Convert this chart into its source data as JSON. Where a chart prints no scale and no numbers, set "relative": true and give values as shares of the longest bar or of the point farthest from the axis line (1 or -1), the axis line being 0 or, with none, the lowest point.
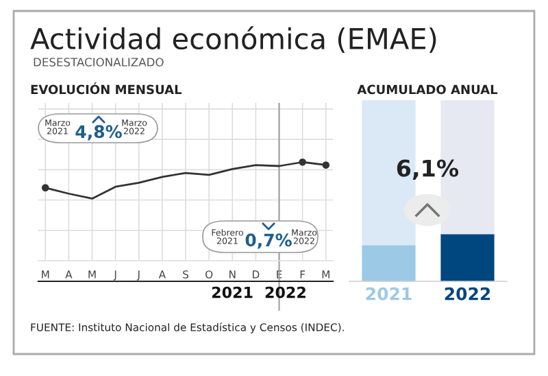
{
  "chart_data": [
    {
      "type": "line",
      "title": "EVOLUCIÓN MENSUAL",
      "relative": true,
      "grid": true,
      "legend": false,
      "marker": "none",
      "line_style": "solid",
      "categories": [
        "M",
        "A",
        "M",
        "J",
        "J",
        "A",
        "S",
        "O",
        "N",
        "D",
        "E",
        "F",
        "M"
      ],
      "series": [
        {
          "color": "#333333",
          "values": [
            0.74,
            0.68,
            0.63,
            0.75,
            0.79,
            0.85,
            0.89,
            0.87,
            0.93,
            0.97,
            0.96,
            1,
            0.97
          ]
        },
        {
          "type": "scatter",
          "marker": "circle",
          "color": "#333333",
          "values": [
            0.74,
            null,
            null,
            null,
            null,
            null,
            null,
            null,
            null,
            null,
            null,
            1,
            0.97
          ]
        }
      ],
      "ref_lines": [
        {
          "axis": "x",
          "value": "E",
          "color": "#999999"
        }
      ],
      "annotations": [
        "Marzo\n2021",
        "4,8%",
        "Marzo\n2022",
        "Febrero\n2021",
        "0,7%",
        "Marzo\n2022",
        "2021",
        "2022"
      ]
    },
    {
      "type": "bar",
      "title": "ACUMULADO ANUAL",
      "relative": true,
      "stacked": true,
      "grid": false,
      "legend": false,
      "categories": [
        "2021",
        "2022"
      ],
      "series": [
        {
          "colors": [
            "#9cc9e6",
            "#00467f"
          ],
          "values": [
            0.2,
            0.26
          ]
        },
        {
          "colors": [
            "#dbe9f6",
            "#e6e9f2"
          ],
          "values": [
            0.8,
            0.74
          ]
        }
      ],
      "annotations": [
        "6,1%"
      ]
    },
    {
      "type": "other",
      "title": "Actividad económica (EMAE)",
      "subtitle": "DESESTACIONALIZADO",
      "annotations": [
        "FUENTE: Instituto Nacional de Estadística y Censos (INDEC)."
      ]
    }
  ]
}
